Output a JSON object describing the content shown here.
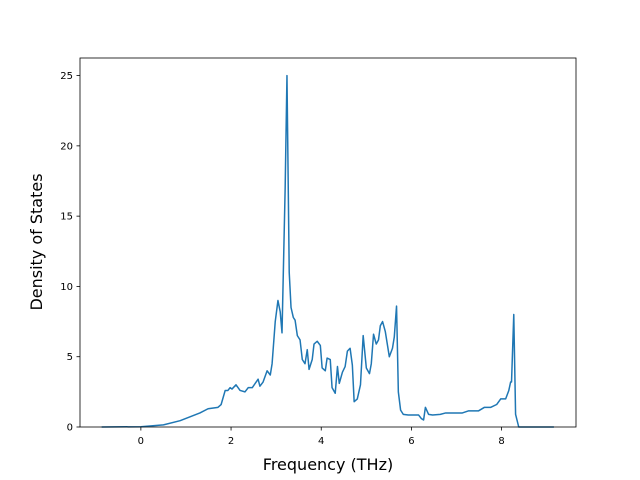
{
  "chart_data": {
    "type": "line",
    "x_label": "Frequency (THz)",
    "y_label": "Density of States",
    "x": [
      -0.87,
      0,
      0.5,
      0.87,
      1.31,
      1.49,
      1.71,
      1.78,
      1.87,
      1.93,
      1.98,
      2.02,
      2.11,
      2.2,
      2.31,
      2.38,
      2.47,
      2.6,
      2.64,
      2.71,
      2.8,
      2.87,
      2.91,
      2.98,
      3.04,
      3.09,
      3.13,
      3.2,
      3.24,
      3.29,
      3.33,
      3.38,
      3.42,
      3.47,
      3.53,
      3.58,
      3.64,
      3.69,
      3.73,
      3.8,
      3.84,
      3.91,
      3.98,
      4.02,
      4.09,
      4.13,
      4.2,
      4.24,
      4.31,
      4.36,
      4.4,
      4.47,
      4.53,
      4.58,
      4.64,
      4.69,
      4.73,
      4.8,
      4.87,
      4.93,
      5.0,
      5.07,
      5.11,
      5.16,
      5.22,
      5.27,
      5.31,
      5.36,
      5.42,
      5.47,
      5.51,
      5.58,
      5.62,
      5.67,
      5.71,
      5.76,
      5.82,
      5.93,
      6.16,
      6.22,
      6.27,
      6.31,
      6.38,
      6.47,
      6.64,
      6.76,
      7.13,
      7.27,
      7.49,
      7.62,
      7.76,
      7.89,
      7.98,
      8.09,
      8.16,
      8.2,
      8.22,
      8.27,
      8.31,
      8.38,
      9.16
    ],
    "series": [
      {
        "color": "#1f77b4",
        "values": [
          0,
          0.02,
          0.15,
          0.45,
          1.0,
          1.3,
          1.4,
          1.6,
          2.6,
          2.6,
          2.8,
          2.7,
          3.0,
          2.6,
          2.5,
          2.8,
          2.8,
          3.4,
          2.9,
          3.2,
          4.0,
          3.7,
          4.5,
          7.5,
          9.0,
          8.2,
          6.7,
          17,
          25,
          11,
          8.5,
          7.8,
          7.6,
          6.5,
          6.2,
          4.8,
          4.5,
          5.5,
          4.1,
          4.8,
          5.9,
          6.1,
          5.8,
          4.2,
          4.0,
          4.9,
          4.8,
          2.8,
          2.4,
          4.3,
          3.1,
          3.9,
          4.3,
          5.4,
          5.6,
          4.4,
          1.8,
          2.0,
          3.0,
          6.5,
          4.2,
          3.8,
          4.5,
          6.6,
          5.9,
          6.2,
          7.2,
          7.5,
          6.8,
          5.8,
          5.0,
          5.6,
          6.4,
          8.6,
          2.5,
          1.2,
          0.9,
          0.85,
          0.85,
          0.6,
          0.5,
          1.4,
          0.9,
          0.85,
          0.9,
          1.0,
          1.0,
          1.15,
          1.15,
          1.4,
          1.4,
          1.6,
          2.0,
          2.0,
          2.6,
          3.2,
          3.2,
          8.0,
          0.9,
          0,
          0
        ]
      }
    ],
    "xlim": [
      -1.35,
      9.65
    ],
    "ylim": [
      0,
      26.25
    ],
    "xticks": [
      0,
      2,
      4,
      6,
      8
    ],
    "yticks": [
      0,
      5,
      10,
      15,
      20,
      25
    ]
  }
}
